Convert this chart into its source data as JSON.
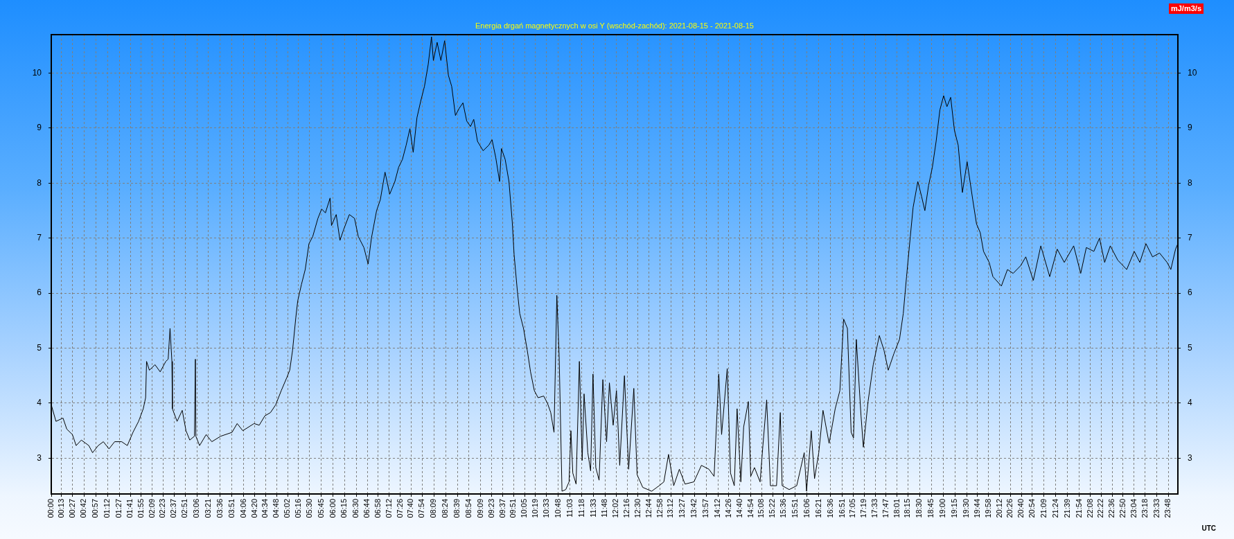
{
  "chart_data": {
    "type": "line",
    "title": "Energia drgań magnetycznych w osi Y (wschód-zachód): 2021-08-15 - 2021-08-15",
    "y2label": "mJ/m3/s",
    "xlabel": "UTC",
    "x": [
      0,
      0.1,
      0.25,
      0.33,
      0.45,
      0.53,
      0.64,
      0.8,
      0.88,
      1.0,
      1.11,
      1.23,
      1.35,
      1.5,
      1.62,
      1.74,
      1.86,
      1.96,
      2.01,
      2.03,
      2.09,
      2.21,
      2.32,
      2.44,
      2.49,
      2.53,
      2.57,
      2.58,
      2.68,
      2.79,
      2.87,
      2.95,
      3.05,
      3.07,
      3.08,
      3.16,
      3.3,
      3.42,
      3.61,
      3.85,
      3.96,
      4.08,
      4.32,
      4.43,
      4.55,
      4.67,
      4.78,
      4.9,
      5.02,
      5.08,
      5.14,
      5.21,
      5.25,
      5.33,
      5.41,
      5.49,
      5.57,
      5.68,
      5.76,
      5.84,
      5.94,
      5.97,
      6.07,
      6.15,
      6.23,
      6.35,
      6.46,
      6.54,
      6.66,
      6.75,
      6.82,
      6.93,
      7.01,
      7.11,
      7.21,
      7.32,
      7.4,
      7.48,
      7.56,
      7.64,
      7.71,
      7.79,
      7.87,
      7.95,
      8.03,
      8.1,
      8.14,
      8.22,
      8.3,
      8.38,
      8.46,
      8.53,
      8.61,
      8.69,
      8.77,
      8.85,
      8.93,
      9.0,
      9.08,
      9.2,
      9.32,
      9.39,
      9.47,
      9.55,
      9.59,
      9.67,
      9.75,
      9.82,
      9.86,
      9.93,
      9.98,
      10.06,
      10.14,
      10.21,
      10.29,
      10.37,
      10.49,
      10.57,
      10.64,
      10.71,
      10.77,
      10.82,
      10.88,
      10.96,
      11.03,
      11.07,
      11.11,
      11.18,
      11.25,
      11.31,
      11.35,
      11.43,
      11.49,
      11.54,
      11.6,
      11.67,
      11.75,
      11.83,
      11.89,
      11.97,
      12.04,
      12.11,
      12.21,
      12.3,
      12.41,
      12.48,
      12.6,
      12.79,
      12.95,
      13.05,
      13.15,
      13.26,
      13.38,
      13.5,
      13.69,
      13.85,
      14.01,
      14.12,
      14.22,
      14.28,
      14.4,
      14.47,
      14.55,
      14.61,
      14.69,
      14.75,
      14.85,
      14.9,
      14.98,
      15.1,
      15.16,
      15.24,
      15.32,
      15.45,
      15.53,
      15.57,
      15.72,
      15.88,
      16.04,
      16.09,
      16.19,
      16.26,
      16.35,
      16.44,
      16.57,
      16.7,
      16.8,
      16.88,
      16.96,
      17.04,
      17.09,
      17.15,
      17.25,
      17.3,
      17.4,
      17.51,
      17.64,
      17.74,
      17.83,
      17.95,
      18.07,
      18.15,
      18.22,
      18.3,
      18.36,
      18.46,
      18.54,
      18.61,
      18.69,
      18.77,
      18.85,
      18.93,
      19.01,
      19.08,
      19.16,
      19.24,
      19.32,
      19.41,
      19.51,
      19.63,
      19.71,
      19.79,
      19.86,
      19.98,
      20.06,
      20.24,
      20.37,
      20.49,
      20.65,
      20.76,
      20.92,
      21.08,
      21.27,
      21.43,
      21.58,
      21.78,
      21.93,
      22.05,
      22.21,
      22.33,
      22.44,
      22.56,
      22.72,
      22.91,
      23.07,
      23.19,
      23.32,
      23.46,
      23.61,
      23.77,
      23.85,
      23.95,
      24.0
    ],
    "series": [
      {
        "color": "#000000",
        "values": [
          3.97,
          3.67,
          3.73,
          3.53,
          3.43,
          3.23,
          3.33,
          3.23,
          3.1,
          3.23,
          3.3,
          3.17,
          3.3,
          3.3,
          3.23,
          3.47,
          3.67,
          3.9,
          4.1,
          4.76,
          4.6,
          4.7,
          4.57,
          4.76,
          4.8,
          5.36,
          4.76,
          3.9,
          3.67,
          3.87,
          3.5,
          3.33,
          3.4,
          4.8,
          3.4,
          3.23,
          3.43,
          3.3,
          3.4,
          3.47,
          3.63,
          3.5,
          3.63,
          3.6,
          3.77,
          3.83,
          3.97,
          4.23,
          4.47,
          4.6,
          4.96,
          5.56,
          5.86,
          6.16,
          6.43,
          6.9,
          7.03,
          7.36,
          7.53,
          7.46,
          7.73,
          7.23,
          7.43,
          6.96,
          7.16,
          7.43,
          7.36,
          7.03,
          6.83,
          6.53,
          7.0,
          7.5,
          7.7,
          8.2,
          7.8,
          8.03,
          8.29,
          8.43,
          8.69,
          8.99,
          8.56,
          9.19,
          9.49,
          9.76,
          10.16,
          10.66,
          10.23,
          10.56,
          10.23,
          10.59,
          9.96,
          9.76,
          9.23,
          9.36,
          9.46,
          9.13,
          9.03,
          9.16,
          8.76,
          8.59,
          8.69,
          8.79,
          8.46,
          8.03,
          8.63,
          8.43,
          8.03,
          7.3,
          6.7,
          6.03,
          5.63,
          5.36,
          4.96,
          4.57,
          4.23,
          4.1,
          4.13,
          4.0,
          3.83,
          3.47,
          5.96,
          4.83,
          2.4,
          2.43,
          2.57,
          3.5,
          2.73,
          2.53,
          4.76,
          2.96,
          4.17,
          3.1,
          2.77,
          4.53,
          2.83,
          2.6,
          4.43,
          3.3,
          4.37,
          3.6,
          4.23,
          2.87,
          4.5,
          2.8,
          4.27,
          2.7,
          2.47,
          2.4,
          2.5,
          2.57,
          3.07,
          2.5,
          2.8,
          2.53,
          2.57,
          2.87,
          2.8,
          2.67,
          4.53,
          3.43,
          4.63,
          2.73,
          2.5,
          3.9,
          2.57,
          3.57,
          4.03,
          2.67,
          2.83,
          2.57,
          3.23,
          4.06,
          2.5,
          2.5,
          3.83,
          2.5,
          2.43,
          2.5,
          3.1,
          2.4,
          3.5,
          2.63,
          3.1,
          3.87,
          3.27,
          3.9,
          4.23,
          5.53,
          5.36,
          3.47,
          3.37,
          5.16,
          3.77,
          3.2,
          4.03,
          4.7,
          5.23,
          4.96,
          4.6,
          4.9,
          5.16,
          5.63,
          6.3,
          7.03,
          7.56,
          8.03,
          7.76,
          7.5,
          7.96,
          8.29,
          8.76,
          9.33,
          9.59,
          9.39,
          9.56,
          8.96,
          8.69,
          7.83,
          8.39,
          7.7,
          7.26,
          7.1,
          6.76,
          6.56,
          6.3,
          6.13,
          6.43,
          6.36,
          6.5,
          6.66,
          6.23,
          6.86,
          6.3,
          6.8,
          6.56,
          6.86,
          6.36,
          6.83,
          6.76,
          7.0,
          6.56,
          6.86,
          6.6,
          6.43,
          6.76,
          6.56,
          6.9,
          6.66,
          6.73,
          6.56,
          6.43,
          6.8,
          6.9
        ]
      }
    ],
    "xlim": [
      0,
      24
    ],
    "xticks": [
      {
        "value": 0,
        "label": "00:00"
      },
      {
        "value": 0.2167,
        "label": "00:13"
      },
      {
        "value": 0.45,
        "label": "00:27"
      },
      {
        "value": 0.7,
        "label": "00:42"
      },
      {
        "value": 0.95,
        "label": "00:57"
      },
      {
        "value": 1.2,
        "label": "01:12"
      },
      {
        "value": 1.45,
        "label": "01:27"
      },
      {
        "value": 1.6833,
        "label": "01:41"
      },
      {
        "value": 1.9167,
        "label": "01:55"
      },
      {
        "value": 2.15,
        "label": "02:09"
      },
      {
        "value": 2.3833,
        "label": "02:23"
      },
      {
        "value": 2.6167,
        "label": "02:37"
      },
      {
        "value": 2.85,
        "label": "02:51"
      },
      {
        "value": 3.1,
        "label": "03:06"
      },
      {
        "value": 3.35,
        "label": "03:21"
      },
      {
        "value": 3.6,
        "label": "03:36"
      },
      {
        "value": 3.85,
        "label": "03:51"
      },
      {
        "value": 4.1,
        "label": "04:06"
      },
      {
        "value": 4.3333,
        "label": "04:20"
      },
      {
        "value": 4.5667,
        "label": "04:34"
      },
      {
        "value": 4.8,
        "label": "04:48"
      },
      {
        "value": 5.0333,
        "label": "05:02"
      },
      {
        "value": 5.2667,
        "label": "05:16"
      },
      {
        "value": 5.5,
        "label": "05:30"
      },
      {
        "value": 5.75,
        "label": "05:45"
      },
      {
        "value": 6,
        "label": "06:00"
      },
      {
        "value": 6.25,
        "label": "06:15"
      },
      {
        "value": 6.5,
        "label": "06:30"
      },
      {
        "value": 6.7333,
        "label": "06:44"
      },
      {
        "value": 6.9667,
        "label": "06:58"
      },
      {
        "value": 7.2,
        "label": "07:12"
      },
      {
        "value": 7.4333,
        "label": "07:26"
      },
      {
        "value": 7.6667,
        "label": "07:40"
      },
      {
        "value": 7.9,
        "label": "07:54"
      },
      {
        "value": 8.15,
        "label": "08:09"
      },
      {
        "value": 8.4,
        "label": "08:24"
      },
      {
        "value": 8.65,
        "label": "08:39"
      },
      {
        "value": 8.9,
        "label": "08:54"
      },
      {
        "value": 9.15,
        "label": "09:09"
      },
      {
        "value": 9.3833,
        "label": "09:23"
      },
      {
        "value": 9.6167,
        "label": "09:37"
      },
      {
        "value": 9.85,
        "label": "09:51"
      },
      {
        "value": 10.0833,
        "label": "10:05"
      },
      {
        "value": 10.3167,
        "label": "10:19"
      },
      {
        "value": 10.55,
        "label": "10:33"
      },
      {
        "value": 10.8,
        "label": "10:48"
      },
      {
        "value": 11.05,
        "label": "11:03"
      },
      {
        "value": 11.3,
        "label": "11:18"
      },
      {
        "value": 11.55,
        "label": "11:33"
      },
      {
        "value": 11.8,
        "label": "11:48"
      },
      {
        "value": 12.0333,
        "label": "12:02"
      },
      {
        "value": 12.2667,
        "label": "12:16"
      },
      {
        "value": 12.5,
        "label": "12:30"
      },
      {
        "value": 12.7333,
        "label": "12:44"
      },
      {
        "value": 12.9667,
        "label": "12:58"
      },
      {
        "value": 13.2,
        "label": "13:12"
      },
      {
        "value": 13.45,
        "label": "13:27"
      },
      {
        "value": 13.7,
        "label": "13:42"
      },
      {
        "value": 13.95,
        "label": "13:57"
      },
      {
        "value": 14.2,
        "label": "14:12"
      },
      {
        "value": 14.4333,
        "label": "14:26"
      },
      {
        "value": 14.6667,
        "label": "14:40"
      },
      {
        "value": 14.9,
        "label": "14:54"
      },
      {
        "value": 15.1333,
        "label": "15:08"
      },
      {
        "value": 15.3667,
        "label": "15:22"
      },
      {
        "value": 15.6,
        "label": "15:36"
      },
      {
        "value": 15.85,
        "label": "15:51"
      },
      {
        "value": 16.1,
        "label": "16:06"
      },
      {
        "value": 16.35,
        "label": "16:21"
      },
      {
        "value": 16.6,
        "label": "16:36"
      },
      {
        "value": 16.85,
        "label": "16:51"
      },
      {
        "value": 17.0833,
        "label": "17:05"
      },
      {
        "value": 17.3167,
        "label": "17:19"
      },
      {
        "value": 17.55,
        "label": "17:33"
      },
      {
        "value": 17.7833,
        "label": "17:47"
      },
      {
        "value": 18.0167,
        "label": "18:01"
      },
      {
        "value": 18.25,
        "label": "18:15"
      },
      {
        "value": 18.5,
        "label": "18:30"
      },
      {
        "value": 18.75,
        "label": "18:45"
      },
      {
        "value": 19,
        "label": "19:00"
      },
      {
        "value": 19.25,
        "label": "19:15"
      },
      {
        "value": 19.5,
        "label": "19:30"
      },
      {
        "value": 19.7333,
        "label": "19:44"
      },
      {
        "value": 19.9667,
        "label": "19:58"
      },
      {
        "value": 20.2,
        "label": "20:12"
      },
      {
        "value": 20.4333,
        "label": "20:26"
      },
      {
        "value": 20.6667,
        "label": "20:40"
      },
      {
        "value": 20.9,
        "label": "20:54"
      },
      {
        "value": 21.15,
        "label": "21:09"
      },
      {
        "value": 21.4,
        "label": "21:24"
      },
      {
        "value": 21.65,
        "label": "21:39"
      },
      {
        "value": 21.9,
        "label": "21:54"
      },
      {
        "value": 22.1333,
        "label": "22:08"
      },
      {
        "value": 22.3667,
        "label": "22:22"
      },
      {
        "value": 22.6,
        "label": "22:36"
      },
      {
        "value": 22.8333,
        "label": "22:50"
      },
      {
        "value": 23.0667,
        "label": "23:04"
      },
      {
        "value": 23.3,
        "label": "23:18"
      },
      {
        "value": 23.55,
        "label": "23:33"
      },
      {
        "value": 23.8,
        "label": "23:48"
      }
    ],
    "ylim": [
      2.35,
      10.7
    ],
    "yticks": [
      3,
      4,
      5,
      6,
      7,
      8,
      9,
      10
    ],
    "y2lim": [
      2.35,
      10.7
    ],
    "y2ticks": [
      3,
      4,
      5,
      6,
      7,
      8,
      9,
      10
    ],
    "grid": true
  }
}
